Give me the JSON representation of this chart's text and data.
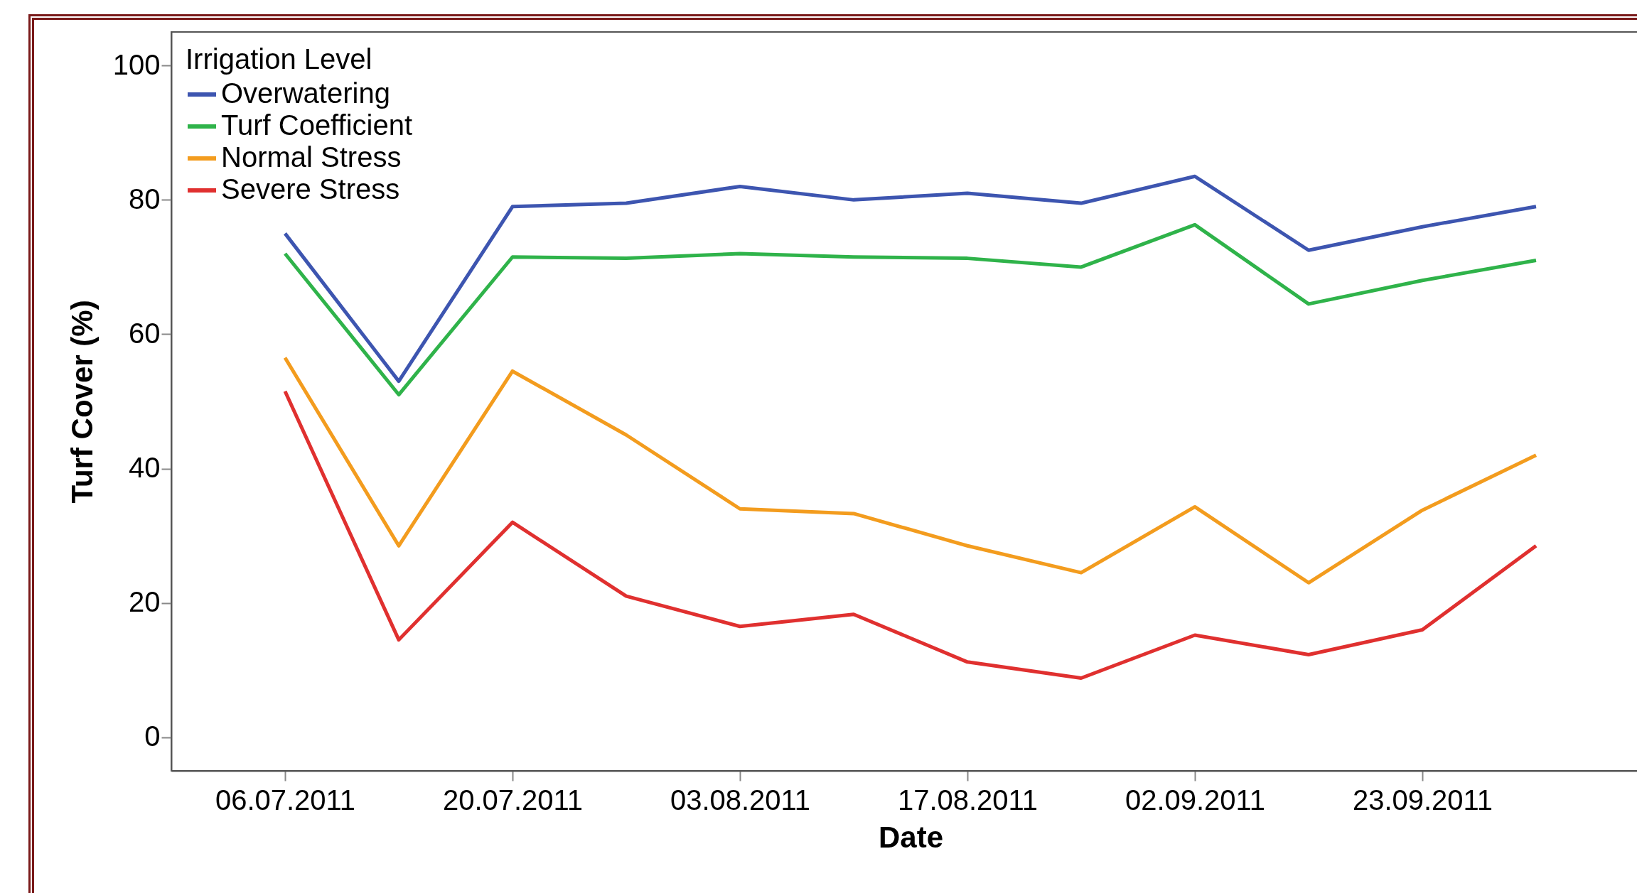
{
  "chart_data": {
    "type": "line",
    "xlabel": "Date",
    "ylabel": "Turf Cover (%)",
    "legend_title": "Irrigation Level",
    "legend": "top left",
    "grid": false,
    "categories": [
      "06.07.2011",
      null,
      "20.07.2011",
      null,
      "03.08.2011",
      null,
      "17.08.2011",
      null,
      "02.09.2011",
      null,
      "23.09.2011",
      null
    ],
    "ylim": [
      -5,
      105
    ],
    "yticks": [
      0,
      20,
      40,
      60,
      80,
      100
    ],
    "series": [
      {
        "name": "Overwatering",
        "color": "#3d55b0",
        "values": [
          75,
          53,
          79,
          79.5,
          82,
          80,
          81,
          79.5,
          83.5,
          72.5,
          76,
          79
        ]
      },
      {
        "name": "Turf Coefficient",
        "color": "#2fb34a",
        "values": [
          72,
          51,
          71.5,
          71.3,
          72,
          71.5,
          71.3,
          70,
          76.3,
          64.5,
          68,
          71
        ]
      },
      {
        "name": "Normal Stress",
        "color": "#f39c1e",
        "values": [
          56.5,
          28.5,
          54.5,
          45,
          34,
          33.3,
          28.5,
          24.5,
          34.3,
          23,
          33.8,
          42
        ]
      },
      {
        "name": "Severe Stress",
        "color": "#e0302f",
        "values": [
          51.5,
          14.5,
          32,
          21,
          16.5,
          18.3,
          11.2,
          8.8,
          15.2,
          12.3,
          16,
          28.5
        ]
      }
    ]
  }
}
